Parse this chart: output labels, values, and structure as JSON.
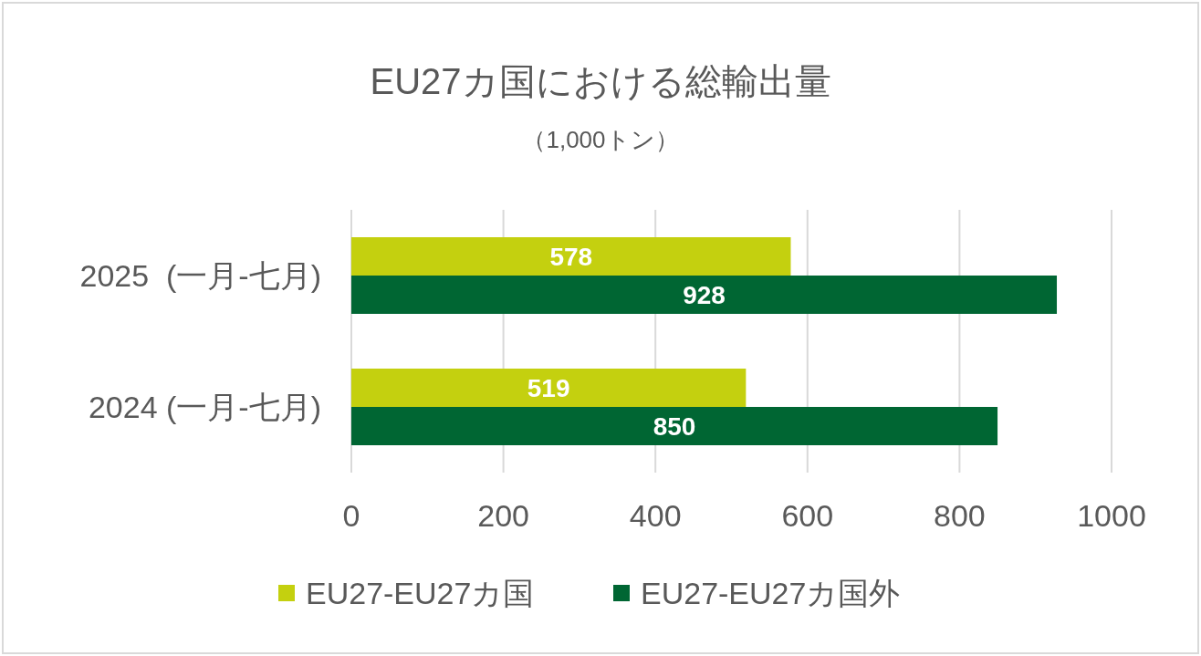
{
  "chart_data": {
    "type": "bar",
    "orientation": "horizontal",
    "title": "EU27カ国における総輸出量",
    "subtitle": "（1,000トン）",
    "categories": [
      "2025  (一月-七月)",
      "2024 (一月-七月)"
    ],
    "series": [
      {
        "name": "EU27-EU27カ国",
        "color": "#c4d00f",
        "values": [
          578,
          519
        ]
      },
      {
        "name": "EU27-EU27カ国外",
        "color": "#006633",
        "values": [
          928,
          850
        ]
      }
    ],
    "xlim": [
      0,
      1000
    ],
    "xticks": [
      0,
      200,
      400,
      600,
      800,
      1000
    ],
    "grid": "x",
    "legend": "bottom",
    "data_labels": true
  }
}
